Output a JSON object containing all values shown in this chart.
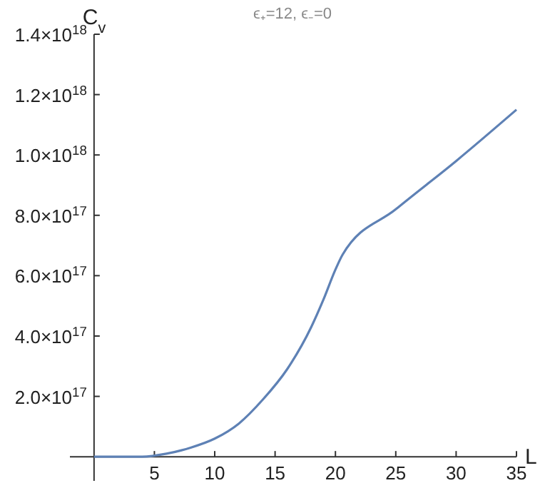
{
  "chart_data": {
    "type": "line",
    "title": "ϵ₊=12, ϵ₋=0",
    "xlabel": "L",
    "ylabel": "C$_{v}$",
    "x": [
      0,
      2,
      4,
      6,
      8,
      10,
      12,
      14,
      16,
      18,
      19,
      20,
      20.6,
      25,
      30,
      35
    ],
    "series": [
      {
        "color": "#5e81b5",
        "values": [
          0,
          0,
          0,
          1e+16,
          3e+16,
          6e+16,
          1.1e+17,
          1.9e+17,
          2.9e+17,
          4.3e+17,
          5.2e+17,
          6.2e+17,
          6.7e+17,
          8.2e+17,
          9.8e+17,
          1.15e+18
        ]
      }
    ],
    "xlim": [
      -2,
      35
    ],
    "ylim": [
      -8e+16,
      1.4e+18
    ],
    "xticks": [
      5,
      10,
      15,
      20,
      25,
      30,
      35
    ],
    "yticks": [
      {
        "value": 2e+17,
        "label": "2.0×10$^{17}$"
      },
      {
        "value": 4e+17,
        "label": "4.0×10$^{17}$"
      },
      {
        "value": 6e+17,
        "label": "6.0×10$^{17}$"
      },
      {
        "value": 8e+17,
        "label": "8.0×10$^{17}$"
      },
      {
        "value": 1e+18,
        "label": "1.0×10$^{18}$"
      },
      {
        "value": 1.2e+18,
        "label": "1.2×10$^{18}$"
      },
      {
        "value": 1.4e+18,
        "label": "1.4×10$^{18}$"
      }
    ]
  }
}
